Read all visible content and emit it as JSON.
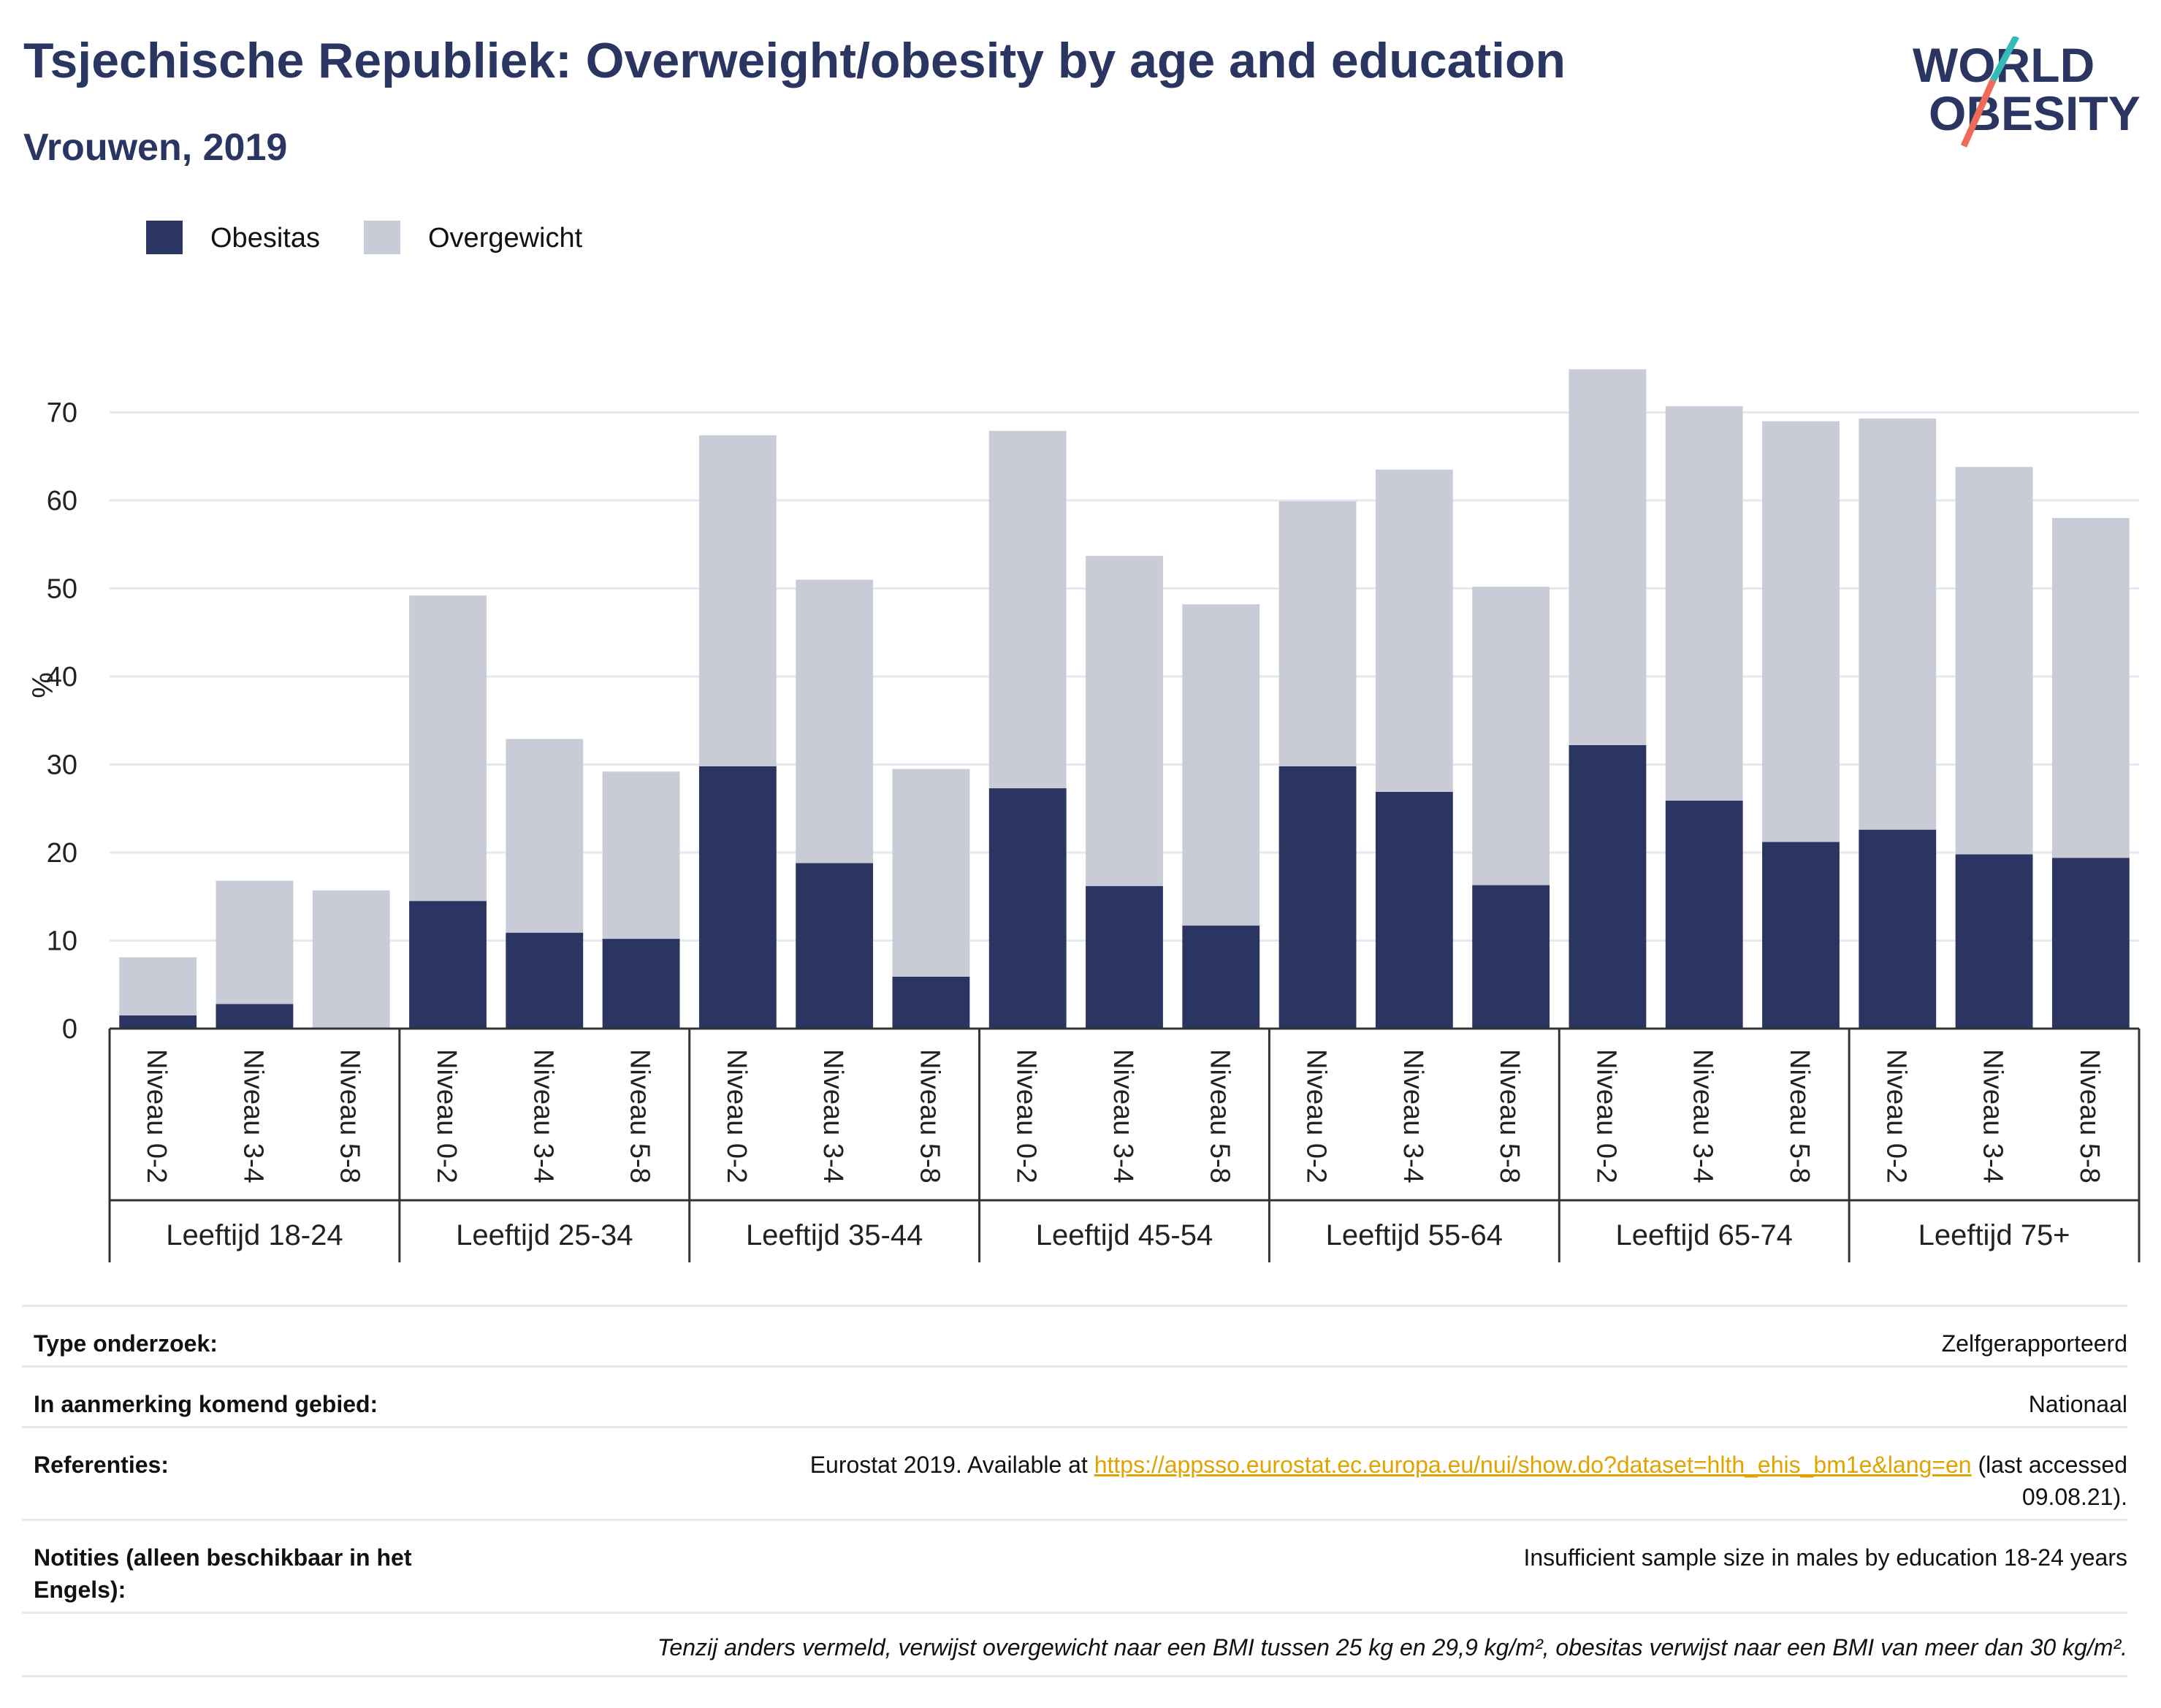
{
  "header": {
    "title": "Tsjechische Republiek: Overweight/obesity by age and education",
    "subtitle": "Vrouwen, 2019",
    "logo_line1": "WORLD",
    "logo_line2": "OBESITY"
  },
  "colors": {
    "obesitas": "#2b3562",
    "overgewicht": "#c9cbd7",
    "title": "#2b3562",
    "link": "#e0a400",
    "logo_teal": "#36b9b9",
    "logo_coral": "#ee6b5a"
  },
  "chart_data": {
    "type": "bar",
    "stacked": true,
    "ylabel": "%",
    "ylim": [
      0,
      75
    ],
    "yticks": [
      0,
      10,
      20,
      30,
      40,
      50,
      60,
      70
    ],
    "grid": true,
    "legend_position": "top-left",
    "groups": [
      "Leeftijd 18-24",
      "Leeftijd 25-34",
      "Leeftijd 35-44",
      "Leeftijd 45-54",
      "Leeftijd 55-64",
      "Leeftijd 65-74",
      "Leeftijd 75+"
    ],
    "subcategories": [
      "Niveau 0-2",
      "Niveau 3-4",
      "Niveau 5-8"
    ],
    "series": [
      {
        "name": "Obesitas",
        "values": [
          1.5,
          2.8,
          0,
          14.5,
          10.9,
          10.2,
          29.8,
          18.8,
          5.9,
          27.3,
          16.2,
          11.7,
          29.8,
          26.9,
          16.3,
          32.2,
          25.9,
          21.2,
          22.6,
          19.8,
          19.4
        ]
      },
      {
        "name": "Overgewicht",
        "values": [
          6.6,
          14.0,
          15.7,
          34.7,
          22.0,
          19.0,
          37.6,
          32.2,
          23.6,
          40.6,
          37.5,
          36.5,
          30.1,
          36.6,
          33.9,
          42.7,
          44.8,
          47.8,
          46.7,
          44.0,
          38.6
        ]
      }
    ]
  },
  "meta": [
    {
      "key": "Type onderzoek:",
      "value": "Zelfgerapporteerd"
    },
    {
      "key": "In aanmerking komend gebied:",
      "value": "Nationaal"
    },
    {
      "key": "Referenties:",
      "value_before": "Eurostat 2019. Available at ",
      "link": "https://appsso.eurostat.ec.europa.eu/nui/show.do?dataset=hlth_ehis_bm1e&lang=en",
      "value_after": " (last accessed",
      "value_line2": "09.08.21)."
    },
    {
      "key": "Notities (alleen beschikbaar in het Engels):",
      "value": "Insufficient sample size in males by education 18-24 years"
    }
  ],
  "footnote": "Tenzij anders vermeld, verwijst overgewicht naar een BMI tussen 25 kg en 29,9 kg/m², obesitas verwijst naar een BMI van meer dan 30 kg/m²."
}
